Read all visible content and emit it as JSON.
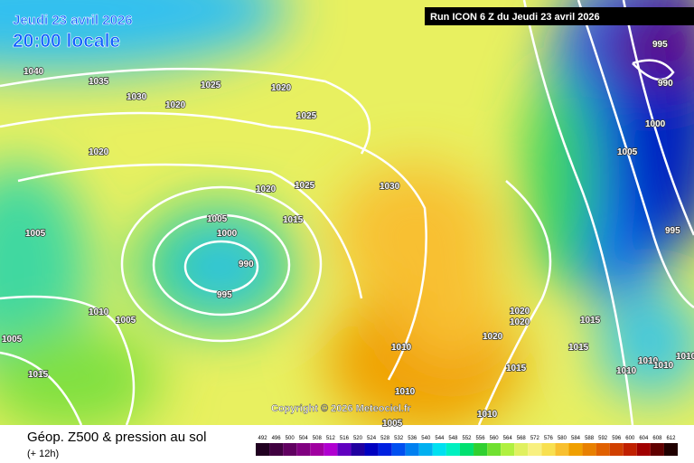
{
  "header": {
    "date": "Jeudi 23 avril 2026",
    "time": "20:00 locale",
    "run": "Run ICON 6 Z du Jeudi 23 avril 2026"
  },
  "footer": {
    "title": "Géop. Z500 & pression au sol",
    "lead": "(+ 12h)",
    "copyright": "Copyright © 2026 Meteociel.fr"
  },
  "legend": {
    "scale": [
      492,
      496,
      500,
      504,
      508,
      512,
      516,
      520,
      524,
      528,
      532,
      536,
      540,
      544,
      548,
      552,
      556,
      560,
      564,
      568,
      572,
      576,
      580,
      584,
      588,
      592,
      596,
      600,
      604,
      608,
      612
    ],
    "colors": [
      "#200020",
      "#400040",
      "#600060",
      "#800080",
      "#a000a0",
      "#b000d0",
      "#6000c0",
      "#2000a0",
      "#0000c0",
      "#0020e0",
      "#0050f0",
      "#0080f0",
      "#00b0f0",
      "#00e0f0",
      "#00f0c0",
      "#00e070",
      "#30d030",
      "#70e030",
      "#b0f040",
      "#e0f060",
      "#f8f080",
      "#f8e050",
      "#f8c030",
      "#f0a000",
      "#e88000",
      "#e06000",
      "#d04000",
      "#c02000",
      "#a00000",
      "#600000",
      "#200000"
    ]
  },
  "isobars": [
    "1040",
    "1035",
    "1030",
    "1025",
    "1020",
    "1025",
    "1020",
    "1020",
    "1020",
    "1025",
    "1030",
    "1015",
    "1005",
    "1000",
    "990",
    "995",
    "1005",
    "1010",
    "1005",
    "1005",
    "1015",
    "1010",
    "1010",
    "1005",
    "1010",
    "1015",
    "1020",
    "1020",
    "1020",
    "1015",
    "1015",
    "1010",
    "1010",
    "1010",
    "1010",
    "1005",
    "1000",
    "995",
    "995",
    "990"
  ]
}
